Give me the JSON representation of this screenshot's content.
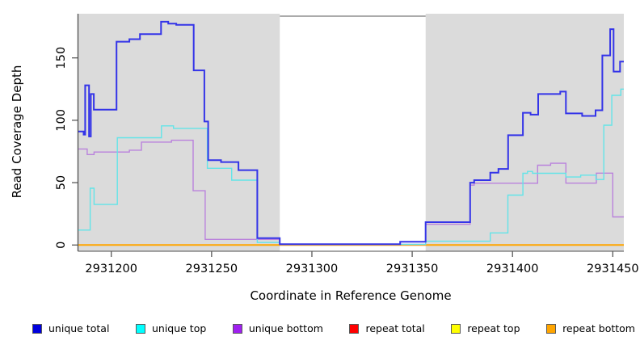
{
  "axis_titles": {
    "y": "Read Coverage Depth",
    "x": "Coordinate in Reference Genome"
  },
  "legend": {
    "items": [
      {
        "label": "unique total",
        "color": "#0000DD"
      },
      {
        "label": "unique top",
        "color": "#00FFFF"
      },
      {
        "label": "unique bottom",
        "color": "#A020F0"
      },
      {
        "label": "repeat total",
        "color": "#FF0000"
      },
      {
        "label": "repeat top",
        "color": "#FFFF00"
      },
      {
        "label": "repeat bottom",
        "color": "#FFA500"
      }
    ]
  },
  "chart_data": {
    "type": "line",
    "title": "",
    "xlabel": "Coordinate in Reference Genome",
    "ylabel": "Read Coverage Depth",
    "xlim": [
      2931183.6,
      2931455.5
    ],
    "ylim": [
      -5,
      185.4
    ],
    "x_ticks": [
      2931200,
      2931250,
      2931300,
      2931350,
      2931400,
      2931450
    ],
    "y_ticks": [
      0,
      50,
      100,
      150
    ],
    "grid": false,
    "legend_position": "bottom",
    "background_regions": [
      {
        "name": "mappable-left",
        "x0": 2931183.6,
        "x1": 2931284.0,
        "color": "#DBDBDB"
      },
      {
        "name": "mappable-right",
        "x0": 2931356.7,
        "x1": 2931455.5,
        "color": "#DBDBDB"
      }
    ],
    "gap_region": {
      "x0": 2931284.0,
      "x1": 2931356.7,
      "top_line_color": "#8F8F8F"
    },
    "series": [
      {
        "name": "repeat total",
        "color": "#EE0000",
        "width": 1.3,
        "step_points": [
          [
            2931183.6,
            0
          ]
        ]
      },
      {
        "name": "repeat top",
        "color": "#FFFF00",
        "width": 1.3,
        "step_points": [
          [
            2931183.6,
            0
          ]
        ]
      },
      {
        "name": "repeat bottom",
        "color": "#FFA500",
        "width": 2,
        "step_points": [
          [
            2931183.6,
            0
          ]
        ]
      },
      {
        "name": "unique bottom",
        "color": "#BA82DC",
        "width": 1.4,
        "step_points": [
          [
            2931183.6,
            77
          ],
          [
            2931188.0,
            72.5
          ],
          [
            2931191.4,
            74.5
          ],
          [
            2931209.0,
            76
          ],
          [
            2931215.0,
            82.5
          ],
          [
            2931230.0,
            84
          ],
          [
            2931240.8,
            43.5
          ],
          [
            2931246.8,
            4.5
          ],
          [
            2931284.0,
            0.5
          ],
          [
            2931356.7,
            16.6
          ],
          [
            2931378.9,
            48
          ],
          [
            2931380.9,
            49.5
          ],
          [
            2931412.5,
            64
          ],
          [
            2931419.0,
            65.5
          ],
          [
            2931426.6,
            49.6
          ],
          [
            2931441.8,
            57.6
          ],
          [
            2931450.0,
            22.5
          ]
        ]
      },
      {
        "name": "unique top",
        "color": "#63E4E8",
        "width": 1.4,
        "step_points": [
          [
            2931183.6,
            12
          ],
          [
            2931189.5,
            45.5
          ],
          [
            2931191.4,
            32.5
          ],
          [
            2931203.0,
            86
          ],
          [
            2931225.0,
            95.5
          ],
          [
            2931231.0,
            93.5
          ],
          [
            2931247.9,
            61.5
          ],
          [
            2931260.0,
            52
          ],
          [
            2931272.8,
            2
          ],
          [
            2931284.0,
            0.6
          ],
          [
            2931356.7,
            3
          ],
          [
            2931388.9,
            9.7
          ],
          [
            2931397.7,
            40
          ],
          [
            2931405.2,
            57.5
          ],
          [
            2931407.5,
            59
          ],
          [
            2931410.0,
            57.5
          ],
          [
            2931426.6,
            54.5
          ],
          [
            2931434.0,
            56
          ],
          [
            2931441.6,
            52.5
          ],
          [
            2931445.5,
            96
          ],
          [
            2931449.5,
            120
          ],
          [
            2931454.0,
            125
          ]
        ]
      },
      {
        "name": "unique total",
        "color": "#3434E8",
        "width": 2,
        "step_points": [
          [
            2931183.6,
            91
          ],
          [
            2931186.2,
            88.5
          ],
          [
            2931187.0,
            128
          ],
          [
            2931188.9,
            87
          ],
          [
            2931189.8,
            121
          ],
          [
            2931191.3,
            108.5
          ],
          [
            2931202.6,
            163
          ],
          [
            2931209.0,
            165
          ],
          [
            2931214.3,
            169
          ],
          [
            2931224.8,
            179
          ],
          [
            2931228.4,
            177.5
          ],
          [
            2931232.4,
            176.5
          ],
          [
            2931241.1,
            140
          ],
          [
            2931246.4,
            99
          ],
          [
            2931248.3,
            68
          ],
          [
            2931254.7,
            66.5
          ],
          [
            2931263.4,
            60
          ],
          [
            2931272.8,
            5.5
          ],
          [
            2931284.0,
            0.7
          ],
          [
            2931344.0,
            2.6
          ],
          [
            2931356.7,
            18.3
          ],
          [
            2931378.9,
            50
          ],
          [
            2931380.9,
            52
          ],
          [
            2931388.9,
            58
          ],
          [
            2931393.0,
            61
          ],
          [
            2931397.8,
            88
          ],
          [
            2931405.2,
            106
          ],
          [
            2931409.0,
            104.5
          ],
          [
            2931412.8,
            121
          ],
          [
            2931423.8,
            123
          ],
          [
            2931426.6,
            105.5
          ],
          [
            2931434.7,
            103.5
          ],
          [
            2931441.4,
            108
          ],
          [
            2931444.8,
            152
          ],
          [
            2931448.7,
            173
          ],
          [
            2931450.4,
            139
          ],
          [
            2931453.6,
            147
          ]
        ]
      }
    ]
  }
}
